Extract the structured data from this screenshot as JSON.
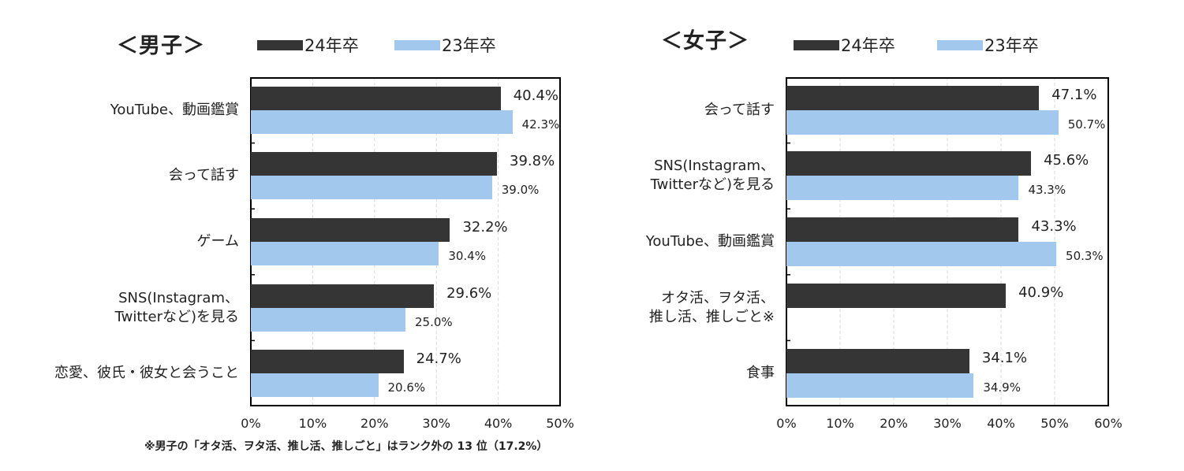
{
  "colors": {
    "series_24": "#353535",
    "series_23": "#a3c8ee",
    "grid": "#d9d9d9",
    "frame": "#000000"
  },
  "legend": {
    "series_24": "24年卒",
    "series_23": "23年卒"
  },
  "chart_data": [
    {
      "type": "bar",
      "orientation": "horizontal",
      "title": "＜男子＞",
      "categories": [
        "YouTube、動画鑑賞",
        "会って話す",
        "ゲーム",
        "SNS(Instagram、\nTwitterなど)を見る",
        "恋愛、彼氏・彼女と会うこと"
      ],
      "series": [
        {
          "name": "24年卒",
          "values": [
            40.4,
            39.8,
            32.2,
            29.6,
            24.7
          ],
          "labels": [
            "40.4%",
            "39.8%",
            "32.2%",
            "29.6%",
            "24.7%"
          ]
        },
        {
          "name": "23年卒",
          "values": [
            42.3,
            39.0,
            30.4,
            25.0,
            20.6
          ],
          "labels": [
            "42.3%",
            "39.0%",
            "30.4%",
            "25.0%",
            "20.6%"
          ]
        }
      ],
      "xlim": [
        0,
        50
      ],
      "xticks": [
        "0%",
        "10%",
        "20%",
        "30%",
        "40%",
        "50%"
      ],
      "grid": true,
      "footnote": "※男子の「オタ活、ヲタ活、推し活、推しごと」はランク外の 13 位（17.2%）"
    },
    {
      "type": "bar",
      "orientation": "horizontal",
      "title": "＜女子＞",
      "categories": [
        "会って話す",
        "SNS(Instagram、\nTwitterなど)を見る",
        "YouTube、動画鑑賞",
        "オタ活、ヲタ活、\n推し活、推しごと※",
        "食事"
      ],
      "series": [
        {
          "name": "24年卒",
          "values": [
            47.1,
            45.6,
            43.3,
            40.9,
            34.1
          ],
          "labels": [
            "47.1%",
            "45.6%",
            "43.3%",
            "40.9%",
            "34.1%"
          ]
        },
        {
          "name": "23年卒",
          "values": [
            50.7,
            43.3,
            50.3,
            null,
            34.9
          ],
          "labels": [
            "50.7%",
            "43.3%",
            "50.3%",
            "",
            "34.9%"
          ]
        }
      ],
      "xlim": [
        0,
        60
      ],
      "xticks": [
        "0%",
        "10%",
        "20%",
        "30%",
        "40%",
        "50%",
        "60%"
      ],
      "grid": true
    }
  ]
}
